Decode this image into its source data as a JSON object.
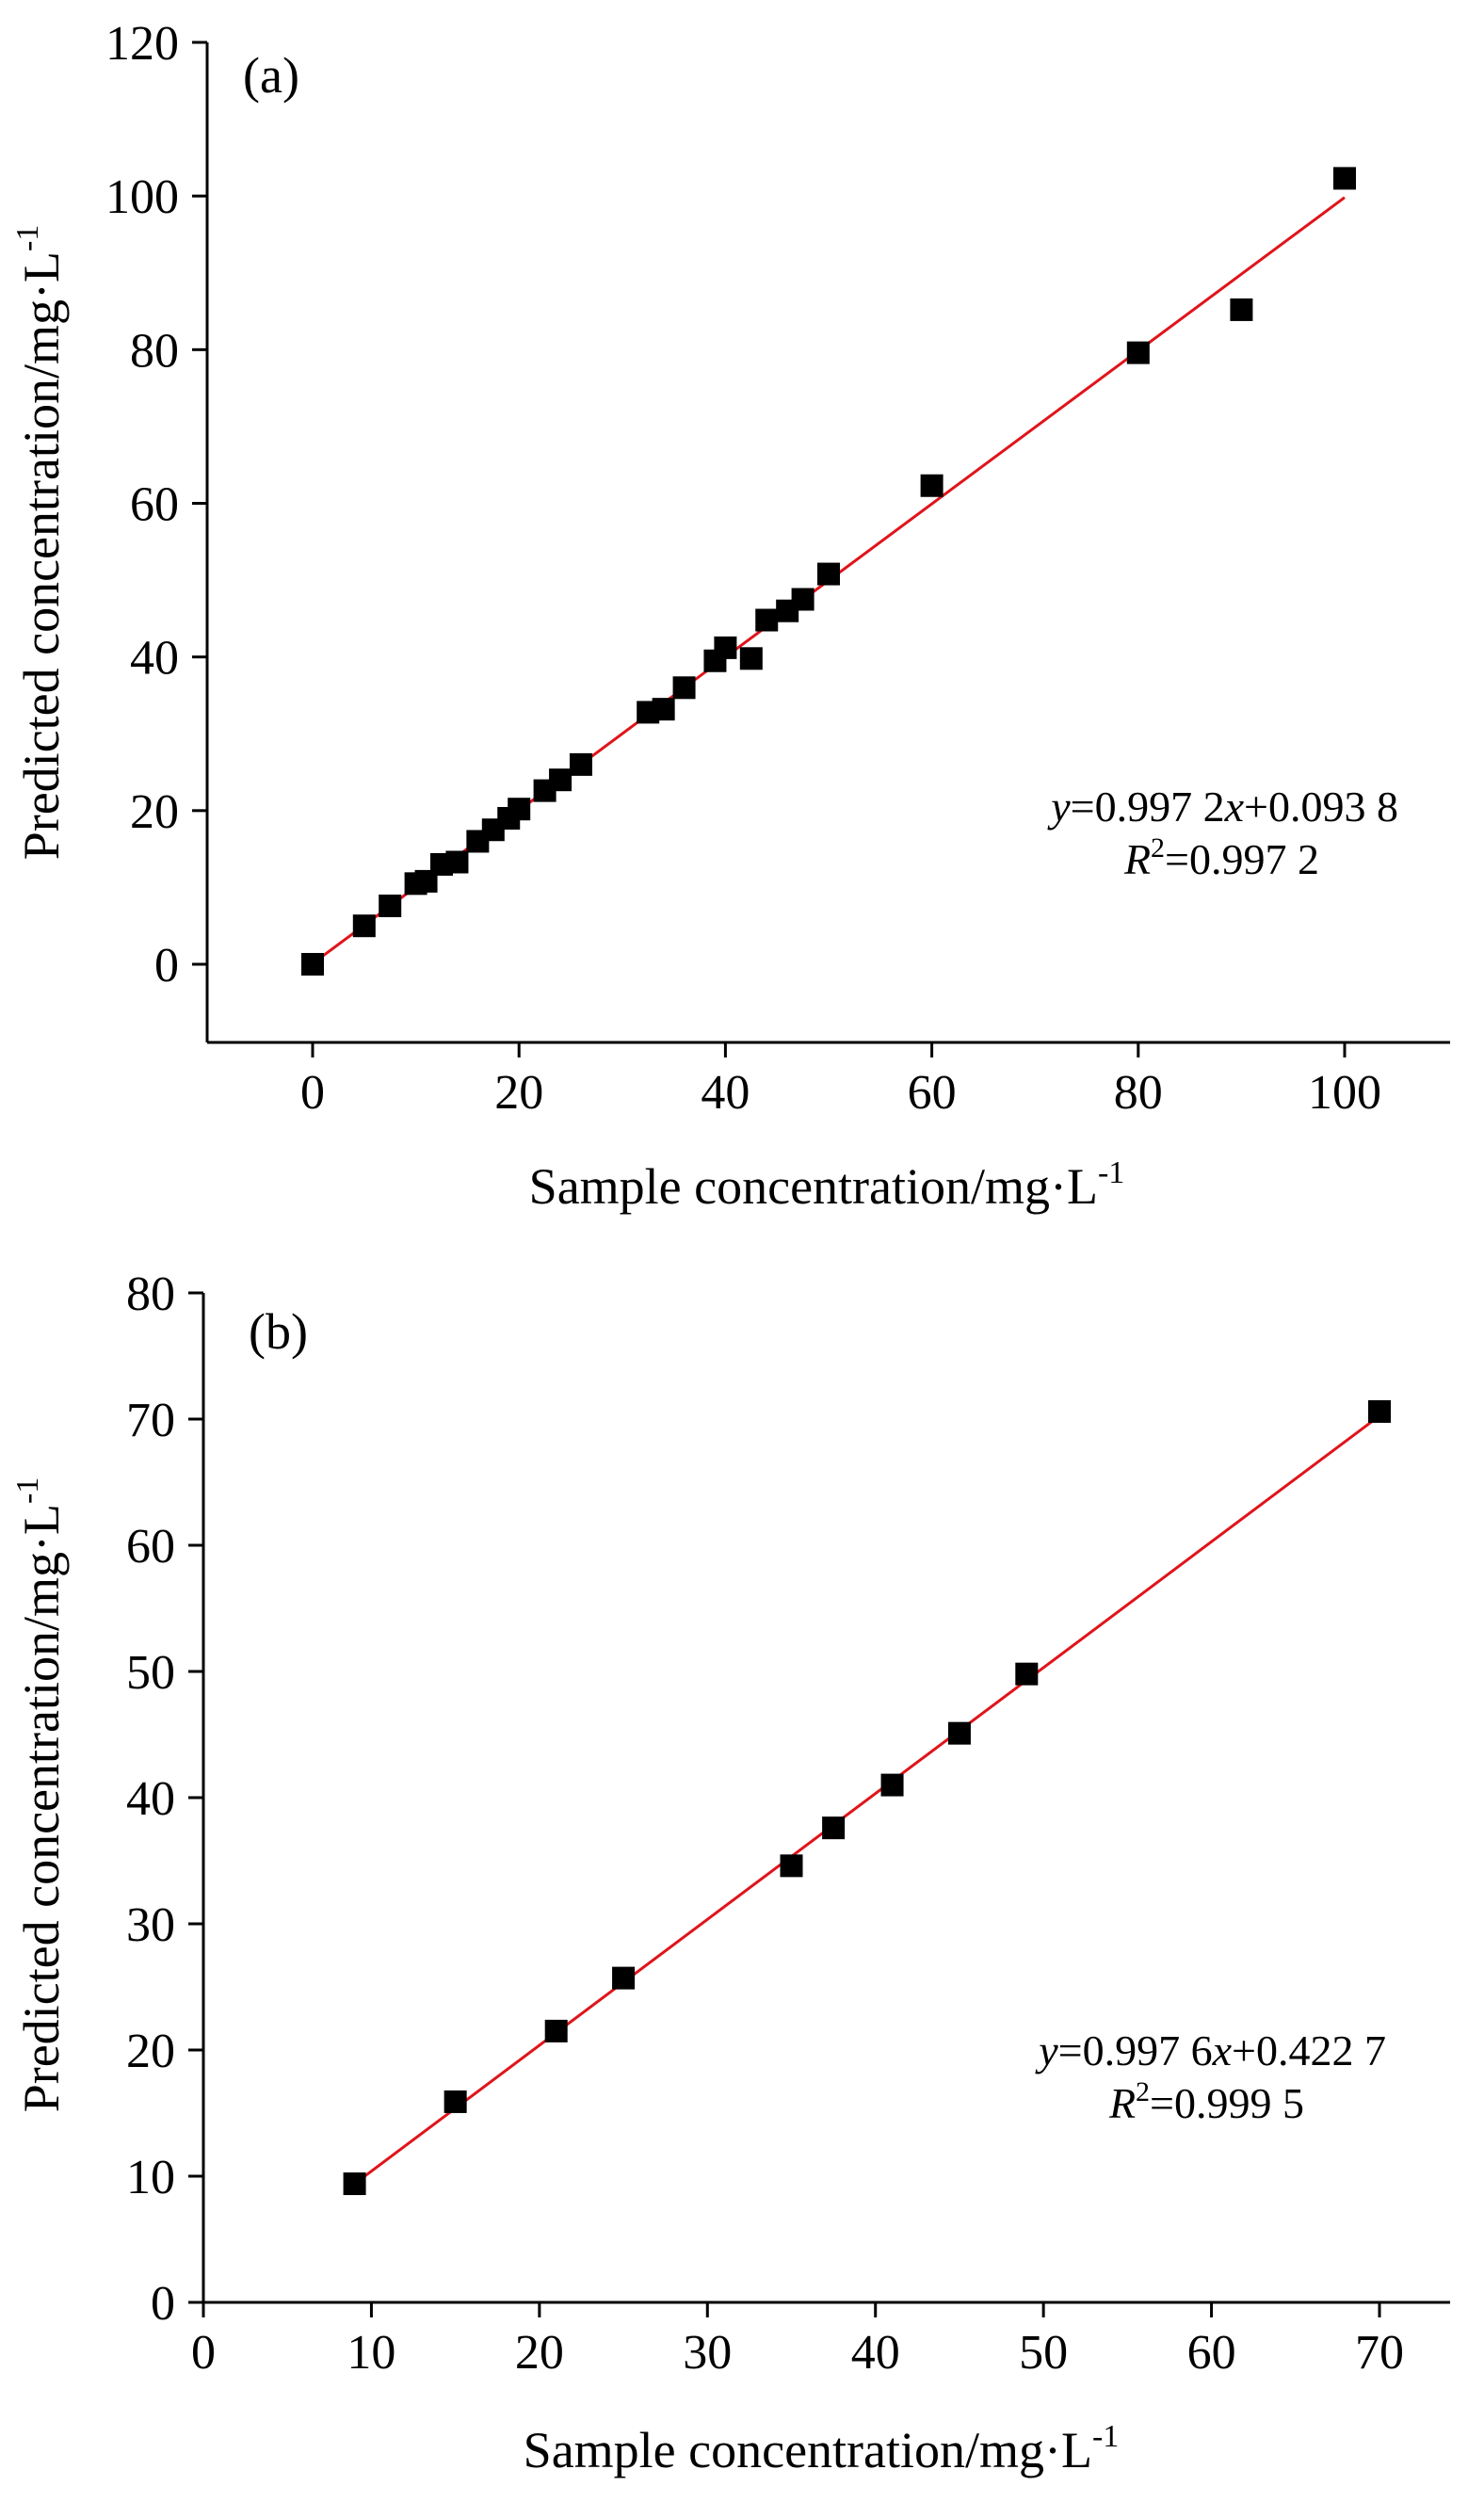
{
  "chart_data": [
    {
      "type": "scatter",
      "panel_label": "(a)",
      "xlabel": {
        "main": "Sample concentration/mg·L",
        "sup": "-1"
      },
      "ylabel": {
        "main": "Predicted concentration/mg·L",
        "sup": "-1"
      },
      "xlim": [
        -10,
        110
      ],
      "ylim": [
        -10,
        120
      ],
      "xticks": [
        0,
        20,
        40,
        60,
        80,
        100
      ],
      "yticks": [
        0,
        20,
        40,
        60,
        80,
        100,
        120
      ],
      "grid": false,
      "marker_color": "#000000",
      "fit_color": "#e0141b",
      "series": [
        {
          "marker": "square",
          "x": [
            0,
            5,
            7.5,
            10,
            11,
            12.5,
            14,
            16,
            17.5,
            19,
            20,
            22.5,
            24,
            26,
            32.5,
            34,
            36,
            39,
            40,
            42.5,
            44,
            46,
            47.5,
            50,
            60,
            80,
            90,
            100
          ],
          "y": [
            0,
            5,
            7.6,
            10.5,
            10.8,
            13,
            13.3,
            16,
            17.5,
            19,
            20.2,
            22.6,
            24,
            26,
            32.8,
            33.2,
            36,
            39.5,
            41.2,
            39.8,
            44.8,
            46,
            47.5,
            50.8,
            62.3,
            79.6,
            85.2,
            102.3
          ]
        }
      ],
      "fit": {
        "slope": 0.9972,
        "intercept": 0.0938,
        "x_range": [
          0,
          100
        ]
      },
      "equation": {
        "y_var": "y",
        "eq_part1": "=0.997 2",
        "x_var": "x",
        "eq_part2": "+0.093 8",
        "r_var": "R",
        "r_sup": "2",
        "r_value": "=0.997 2"
      }
    },
    {
      "type": "scatter",
      "panel_label": "(b)",
      "xlabel": {
        "main": "Sample concentration/mg·L",
        "sup": "-1"
      },
      "ylabel": {
        "main": "Predicted concentration/mg·L",
        "sup": "-1"
      },
      "xlim": [
        0,
        75
      ],
      "ylim": [
        0,
        80
      ],
      "xticks": [
        0,
        10,
        20,
        30,
        40,
        50,
        60,
        70
      ],
      "yticks": [
        0,
        10,
        20,
        30,
        40,
        50,
        60,
        70,
        80
      ],
      "grid": false,
      "marker_color": "#000000",
      "fit_color": "#e0141b",
      "series": [
        {
          "marker": "square",
          "x": [
            9,
            15,
            21,
            25,
            35,
            37.5,
            41,
            45,
            49,
            70
          ],
          "y": [
            9.4,
            15.9,
            21.5,
            25.7,
            34.6,
            37.6,
            41,
            45.1,
            49.8,
            70.6
          ]
        }
      ],
      "fit": {
        "slope": 0.9976,
        "intercept": 0.4227,
        "x_range": [
          9,
          70
        ]
      },
      "equation": {
        "y_var": "y",
        "eq_part1": "=0.997 6",
        "x_var": "x",
        "eq_part2": "+0.422 7",
        "r_var": "R",
        "r_sup": "2",
        "r_value": "=0.999 5"
      }
    }
  ]
}
